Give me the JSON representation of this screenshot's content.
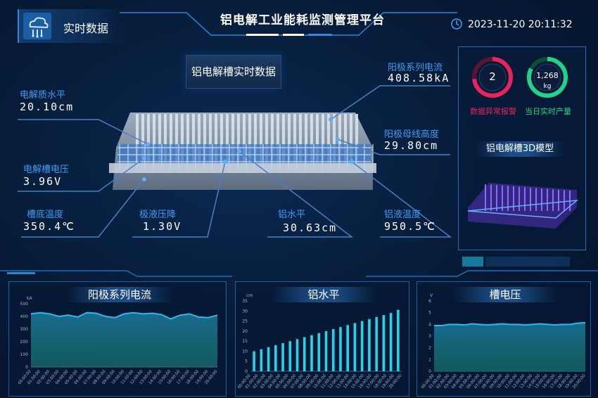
{
  "header": {
    "section_label": "实时数据",
    "title": "铝电解工业能耗监测管理平台",
    "datetime": "2023-11-20 20:11:32"
  },
  "center": {
    "title": "铝电解槽实时数据",
    "metrics": {
      "electrolyte_level": {
        "label": "电解质水平",
        "value": "20.10cm"
      },
      "cell_voltage": {
        "label": "电解槽电压",
        "value": "3.96V"
      },
      "bottom_temp": {
        "label": "槽底温度",
        "value": "350.4℃"
      },
      "anode_drop": {
        "label": "极液压降",
        "value": "1.30V"
      },
      "al_level": {
        "label": "铝水平",
        "value": "30.63cm"
      },
      "al_temp": {
        "label": "铝液温度",
        "value": "950.5℃"
      },
      "anode_current": {
        "label": "阳极系列电流",
        "value": "408.58kA"
      },
      "busbar_height": {
        "label": "阳极母线高度",
        "value": "29.80cm"
      }
    }
  },
  "right": {
    "alarm": {
      "value": "2",
      "label": "数据异常报警"
    },
    "output": {
      "value": "1,268",
      "unit": "kg",
      "label": "当日实时产量"
    },
    "model_title": "铝电解槽3D模型"
  },
  "colors": {
    "accent": "#2b86d6",
    "alarm": "#e8245c",
    "output": "#20d38a",
    "line": "#2fb7f0",
    "bar": "#26d3e8"
  },
  "chart_data": [
    {
      "type": "area",
      "title": "阳极系列电流",
      "ylabel": "kA",
      "ylim": [
        0,
        500
      ],
      "yticks": [
        "0",
        "100",
        "200",
        "300",
        "400",
        "500"
      ],
      "x": [
        "00:00:00",
        "01:00:00",
        "02:00:00",
        "03:00:00",
        "04:00:00",
        "05:00:00",
        "06:00:00",
        "07:00:00",
        "08:00:00",
        "09:00:00",
        "10:00:00",
        "11:00:00",
        "12:00:00",
        "13:00:00",
        "14:00:00",
        "15:00:00",
        "16:00:00",
        "17:00:00",
        "18:00:00",
        "19:00:00",
        "20:00:00"
      ],
      "values": [
        420,
        430,
        420,
        400,
        410,
        395,
        430,
        425,
        400,
        390,
        420,
        430,
        420,
        425,
        415,
        380,
        410,
        420,
        395,
        390,
        410
      ]
    },
    {
      "type": "bar",
      "title": "铝水平",
      "ylabel": "cm",
      "ylim": [
        0,
        35
      ],
      "yticks": [
        "0",
        "5",
        "10",
        "15",
        "20",
        "25",
        "30",
        "35"
      ],
      "x": [
        "00:00:00",
        "01:00:00",
        "02:00:00",
        "03:00:00",
        "04:00:00",
        "05:00:00",
        "06:00:00",
        "07:00:00",
        "08:00:00",
        "09:00:00",
        "10:00:00",
        "11:00:00",
        "12:00:00",
        "13:00:00",
        "14:00:00",
        "15:00:00",
        "16:00:00",
        "17:00:00",
        "18:00:00",
        "19:00:00",
        "20:00:00"
      ],
      "values": [
        10,
        11,
        12,
        13,
        14,
        15,
        16,
        17,
        18,
        19,
        20,
        21,
        22,
        23,
        24,
        25,
        26,
        27,
        28,
        29,
        30.6
      ]
    },
    {
      "type": "area",
      "title": "槽电压",
      "ylabel": "V",
      "ylim": [
        0,
        6
      ],
      "yticks": [
        "0",
        "1",
        "2",
        "3",
        "4",
        "5",
        "6"
      ],
      "x": [
        "00:00:00",
        "01:00:00",
        "02:00:00",
        "03:00:00",
        "04:00:00",
        "05:00:00",
        "06:00:00",
        "07:00:00",
        "08:00:00",
        "09:00:00",
        "10:00:00",
        "11:00:00",
        "12:00:00",
        "13:00:00",
        "14:00:00",
        "15:00:00",
        "16:00:00",
        "17:00:00",
        "18:00:00",
        "19:00:00",
        "20:00:00"
      ],
      "values": [
        3.9,
        3.9,
        4.0,
        4.0,
        3.95,
        4.05,
        4.0,
        3.95,
        4.0,
        4.05,
        4.0,
        4.0,
        3.95,
        4.0,
        4.05,
        4.0,
        3.95,
        4.0,
        4.0,
        4.1,
        4.15
      ]
    }
  ]
}
